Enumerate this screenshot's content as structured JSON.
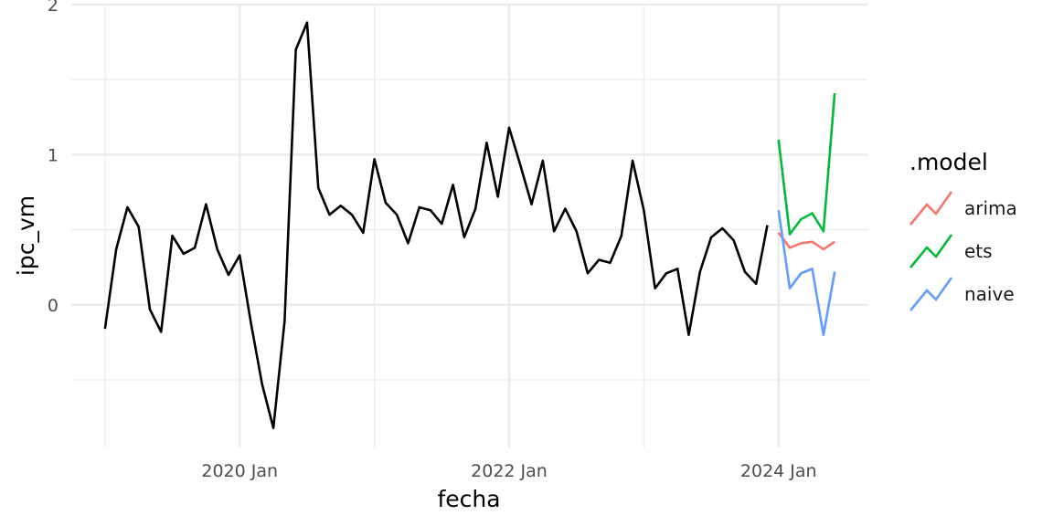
{
  "chart_data": {
    "type": "line",
    "xlabel": "fecha",
    "ylabel": "ipc_vm",
    "x_tick_labels": [
      "2020 Jan",
      "2022 Jan",
      "2024 Jan"
    ],
    "x_tick_values": [
      "2020-01",
      "2022-01",
      "2024-01"
    ],
    "y_tick_values": [
      0,
      1,
      2
    ],
    "y_tick_labels": [
      "0",
      "1",
      "2"
    ],
    "xlim": [
      "2018-10",
      "2024-09"
    ],
    "ylim": [
      -0.95,
      2.0
    ],
    "grid": true,
    "legend": {
      "title": ".model",
      "position": "right",
      "entries": [
        "arima",
        "ets",
        "naive"
      ]
    },
    "history": {
      "color": "#000000",
      "x": [
        "2019-01",
        "2019-02",
        "2019-03",
        "2019-04",
        "2019-05",
        "2019-06",
        "2019-07",
        "2019-08",
        "2019-09",
        "2019-10",
        "2019-11",
        "2019-12",
        "2020-01",
        "2020-02",
        "2020-03",
        "2020-04",
        "2020-05",
        "2020-06",
        "2020-07",
        "2020-08",
        "2020-09",
        "2020-10",
        "2020-11",
        "2020-12",
        "2021-01",
        "2021-02",
        "2021-03",
        "2021-04",
        "2021-05",
        "2021-06",
        "2021-07",
        "2021-08",
        "2021-09",
        "2021-10",
        "2021-11",
        "2021-12",
        "2022-01",
        "2022-02",
        "2022-03",
        "2022-04",
        "2022-05",
        "2022-06",
        "2022-07",
        "2022-08",
        "2022-09",
        "2022-10",
        "2022-11",
        "2022-12",
        "2023-01",
        "2023-02",
        "2023-03",
        "2023-04",
        "2023-05",
        "2023-06",
        "2023-07",
        "2023-08",
        "2023-09",
        "2023-10",
        "2023-11",
        "2023-12"
      ],
      "values": [
        -0.16,
        0.37,
        0.65,
        0.52,
        -0.03,
        -0.18,
        0.46,
        0.34,
        0.38,
        0.67,
        0.37,
        0.2,
        0.33,
        -0.12,
        -0.53,
        -0.82,
        -0.11,
        1.7,
        1.88,
        0.78,
        0.6,
        0.66,
        0.6,
        0.48,
        0.97,
        0.68,
        0.6,
        0.41,
        0.65,
        0.63,
        0.54,
        0.8,
        0.45,
        0.64,
        1.08,
        0.72,
        1.18,
        0.93,
        0.67,
        0.96,
        0.49,
        0.64,
        0.49,
        0.21,
        0.3,
        0.28,
        0.46,
        0.96,
        0.63,
        0.11,
        0.21,
        0.24,
        -0.2,
        0.22,
        0.45,
        0.51,
        0.43,
        0.22,
        0.14,
        0.53
      ]
    },
    "series": [
      {
        "name": "arima",
        "color": "#F8766D",
        "x": [
          "2024-01",
          "2024-02",
          "2024-03",
          "2024-04",
          "2024-05",
          "2024-06"
        ],
        "values": [
          0.48,
          0.38,
          0.41,
          0.42,
          0.37,
          0.42
        ]
      },
      {
        "name": "ets",
        "color": "#00BA38",
        "x": [
          "2024-01",
          "2024-02",
          "2024-03",
          "2024-04",
          "2024-05",
          "2024-06"
        ],
        "values": [
          1.1,
          0.47,
          0.57,
          0.61,
          0.49,
          1.41
        ]
      },
      {
        "name": "naive",
        "color": "#619CFF",
        "x": [
          "2024-01",
          "2024-02",
          "2024-03",
          "2024-04",
          "2024-05",
          "2024-06"
        ],
        "values": [
          0.63,
          0.11,
          0.21,
          0.24,
          -0.2,
          0.22
        ]
      }
    ]
  }
}
